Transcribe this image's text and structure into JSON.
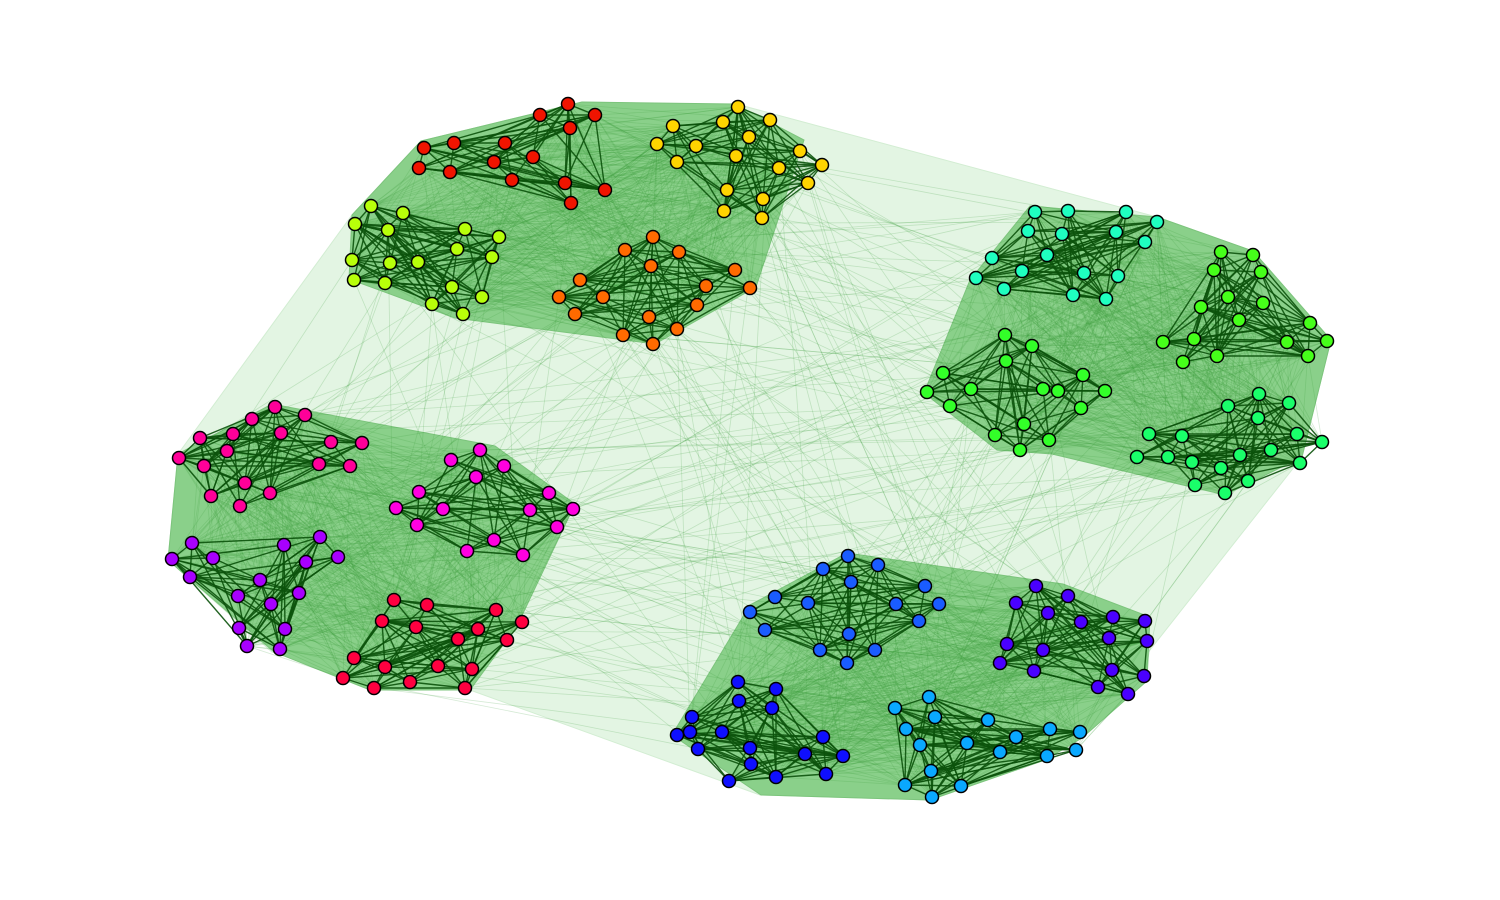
{
  "figure": {
    "type": "hierarchical-network",
    "levels": [
      "graph",
      "super-group",
      "community",
      "node"
    ],
    "colors": {
      "background": "#ffffff",
      "outer_hull": "#e3f5e3",
      "super_group_hull": "#8ad08a",
      "intra_edge": "#0b520b",
      "inter_edge": "#3f9f3f",
      "node_outline": "#000000"
    },
    "super_groups": [
      {
        "id": "top",
        "communities": [
          {
            "id": "red-a",
            "color": "#f01400",
            "node_count": 15
          },
          {
            "id": "yellow-a",
            "color": "#ffd400",
            "node_count": 17
          },
          {
            "id": "chartreuse",
            "color": "#b8ff0a",
            "node_count": 17
          },
          {
            "id": "orange",
            "color": "#ff6a00",
            "node_count": 16
          }
        ]
      },
      {
        "id": "right",
        "communities": [
          {
            "id": "aqua",
            "color": "#1fffc0",
            "node_count": 17
          },
          {
            "id": "green-a",
            "color": "#46ff1a",
            "node_count": 16
          },
          {
            "id": "green-b",
            "color": "#33ff29",
            "node_count": 16
          },
          {
            "id": "spring",
            "color": "#1aff6a",
            "node_count": 18
          }
        ]
      },
      {
        "id": "left",
        "communities": [
          {
            "id": "rose",
            "color": "#ff0099",
            "node_count": 17
          },
          {
            "id": "magenta",
            "color": "#ff00e0",
            "node_count": 15
          },
          {
            "id": "violet",
            "color": "#a800ff",
            "node_count": 16
          },
          {
            "id": "crimson",
            "color": "#ff0040",
            "node_count": 17
          }
        ]
      },
      {
        "id": "bottom",
        "communities": [
          {
            "id": "azure",
            "color": "#1a5cff",
            "node_count": 16
          },
          {
            "id": "indigo",
            "color": "#4a00ff",
            "node_count": 17
          },
          {
            "id": "blue",
            "color": "#0f0fff",
            "node_count": 17
          },
          {
            "id": "sky",
            "color": "#0aa8ff",
            "node_count": 18
          }
        ]
      }
    ]
  }
}
